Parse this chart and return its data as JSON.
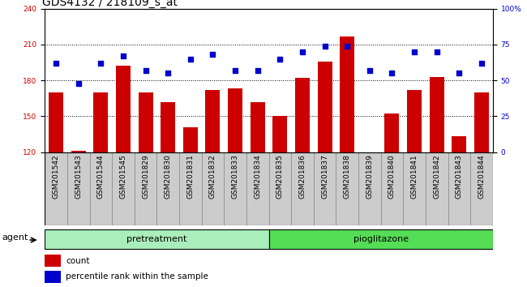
{
  "title": "GDS4132 / 218109_s_at",
  "samples": [
    "GSM201542",
    "GSM201543",
    "GSM201544",
    "GSM201545",
    "GSM201829",
    "GSM201830",
    "GSM201831",
    "GSM201832",
    "GSM201833",
    "GSM201834",
    "GSM201835",
    "GSM201836",
    "GSM201837",
    "GSM201838",
    "GSM201839",
    "GSM201840",
    "GSM201841",
    "GSM201842",
    "GSM201843",
    "GSM201844"
  ],
  "counts": [
    170,
    121,
    170,
    192,
    170,
    162,
    141,
    172,
    173,
    162,
    150,
    182,
    196,
    217,
    120,
    152,
    172,
    183,
    133,
    170
  ],
  "percentiles": [
    62,
    48,
    62,
    67,
    57,
    55,
    65,
    68,
    57,
    57,
    65,
    70,
    74,
    74,
    57,
    55,
    70,
    70,
    55,
    62
  ],
  "group_labels": [
    "pretreatment",
    "pioglitazone"
  ],
  "pretreatment_count": 10,
  "pioglitazone_count": 10,
  "ylim_left": [
    120,
    240
  ],
  "ylim_right": [
    0,
    100
  ],
  "yticks_left": [
    120,
    150,
    180,
    210,
    240
  ],
  "yticks_right": [
    0,
    25,
    50,
    75,
    100
  ],
  "yticklabels_right": [
    "0",
    "25",
    "50",
    "75",
    "100%"
  ],
  "bar_color": "#cc0000",
  "scatter_color": "#0000cc",
  "pretreatment_color": "#aaeebb",
  "pioglitazone_color": "#55dd55",
  "sample_box_color": "#cccccc",
  "sample_box_edge": "#888888",
  "title_fontsize": 10,
  "tick_fontsize": 6.5,
  "label_fontsize": 8,
  "legend_fontsize": 7.5,
  "agent_fontsize": 8
}
